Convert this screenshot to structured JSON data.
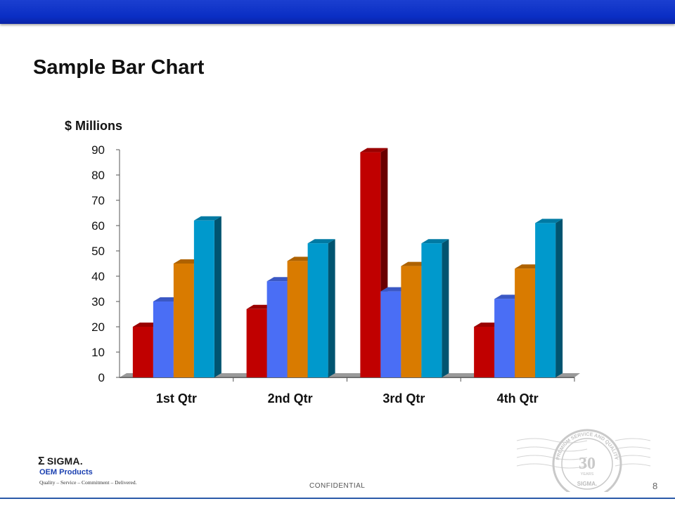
{
  "slide": {
    "title": "Sample Bar Chart",
    "confidential": "CONFIDENTIAL",
    "page_number": "8"
  },
  "logo": {
    "brand": "SIGMA.",
    "product": "OEM Products",
    "tagline": "Quality – Service – Commitment – Delivered."
  },
  "seal": {
    "top_text": "PREMIUM SERVICE AND QUALITY",
    "number": "30",
    "years": "YEARS",
    "brand": "SIGMA."
  },
  "colors": {
    "header_bar": "#0a2ec4",
    "series": [
      "#c00000",
      "#4a6ef5",
      "#d97b00",
      "#0099cc"
    ]
  },
  "chart_data": {
    "type": "bar",
    "title": "",
    "ylabel": "$ Millions",
    "xlabel": "",
    "categories": [
      "1st Qtr",
      "2nd Qtr",
      "3rd Qtr",
      "4th Qtr"
    ],
    "series": [
      {
        "values": [
          20,
          27,
          89,
          20
        ]
      },
      {
        "values": [
          30,
          38,
          34,
          31
        ]
      },
      {
        "values": [
          45,
          46,
          44,
          43
        ]
      },
      {
        "values": [
          62,
          53,
          53,
          61
        ]
      }
    ],
    "ylim": [
      0,
      90
    ],
    "yticks": [
      0,
      10,
      20,
      30,
      40,
      50,
      60,
      70,
      80,
      90
    ],
    "grid": false,
    "legend": "none",
    "style": "3d"
  }
}
